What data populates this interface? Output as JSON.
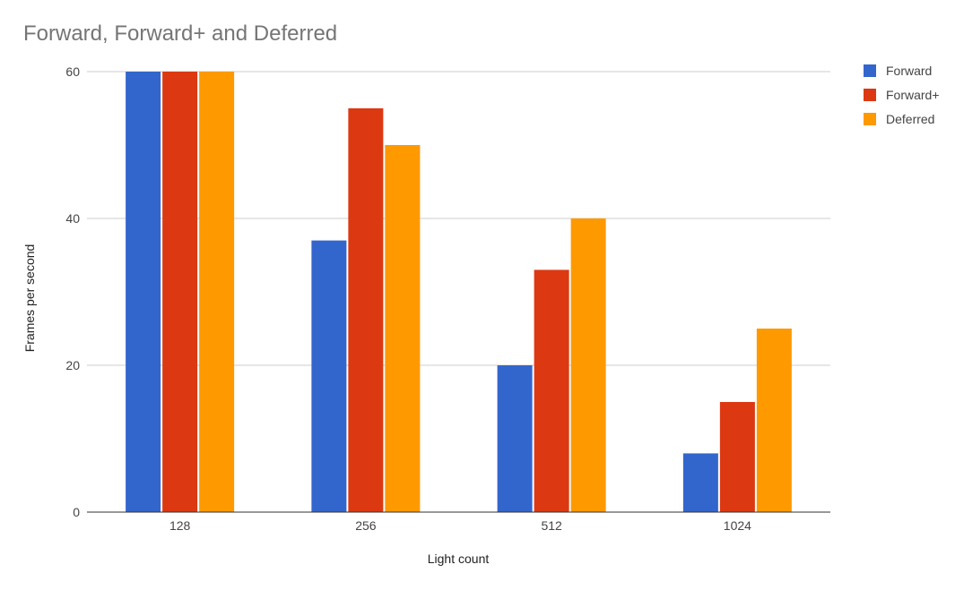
{
  "chart_data": {
    "type": "bar",
    "title": "Forward, Forward+ and Deferred",
    "xlabel": "Light count",
    "ylabel": "Frames per second",
    "categories": [
      "128",
      "256",
      "512",
      "1024"
    ],
    "series": [
      {
        "name": "Forward",
        "color": "#3366cc",
        "values": [
          60,
          37,
          20,
          8
        ]
      },
      {
        "name": "Forward+",
        "color": "#dc3912",
        "values": [
          60,
          55,
          33,
          15
        ]
      },
      {
        "name": "Deferred",
        "color": "#ff9900",
        "values": [
          60,
          50,
          40,
          25
        ]
      }
    ],
    "ylim": [
      0,
      60
    ],
    "yticks": [
      0,
      20,
      40,
      60
    ],
    "grid": true,
    "legend_position": "right"
  },
  "colors": {
    "grid": "#cccccc",
    "baseline": "#333333",
    "title": "#757575"
  }
}
